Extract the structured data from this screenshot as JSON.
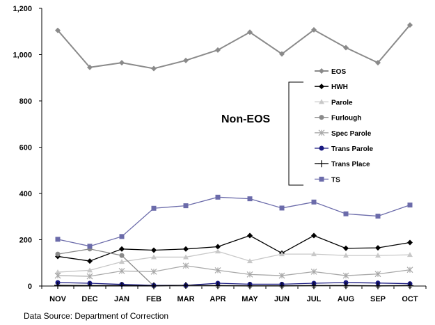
{
  "chart_data": {
    "type": "line",
    "title": "",
    "xlabel": "",
    "ylabel": "",
    "categories": [
      "NOV",
      "DEC",
      "JAN",
      "FEB",
      "MAR",
      "APR",
      "MAY",
      "JUN",
      "JUL",
      "AUG",
      "SEP",
      "OCT"
    ],
    "ylim": [
      0,
      1200
    ],
    "y_ticks": [
      0,
      200,
      400,
      600,
      800,
      1000,
      1200
    ],
    "y_tick_labels": [
      "0",
      "200",
      "400",
      "600",
      "800",
      "1,000",
      "1,200"
    ],
    "grid": false,
    "legend_position": "right",
    "series": [
      {
        "name": "EOS",
        "color": "#8a8a8a",
        "marker": "diamond",
        "values": [
          1105,
          945,
          965,
          940,
          975,
          1020,
          1097,
          1003,
          1107,
          1030,
          965,
          1128
        ]
      },
      {
        "name": "HWH",
        "color": "#000000",
        "marker": "diamond",
        "values": [
          128,
          108,
          160,
          155,
          160,
          170,
          218,
          142,
          218,
          163,
          165,
          188
        ]
      },
      {
        "name": "Parole",
        "color": "#c8c8c8",
        "marker": "triangle",
        "values": [
          60,
          68,
          105,
          125,
          125,
          150,
          108,
          138,
          138,
          132,
          132,
          135
        ]
      },
      {
        "name": "Furlough",
        "color": "#8a8a8a",
        "marker": "circle",
        "values": [
          138,
          160,
          132,
          0,
          0,
          0,
          0,
          0,
          0,
          0,
          0,
          0
        ]
      },
      {
        "name": "Spec Parole",
        "color": "#a8a8a8",
        "marker": "asterisk",
        "values": [
          45,
          42,
          65,
          62,
          88,
          68,
          50,
          45,
          62,
          45,
          52,
          70
        ]
      },
      {
        "name": "Trans Parole",
        "color": "#1a1a80",
        "marker": "circle",
        "values": [
          15,
          12,
          7,
          3,
          3,
          12,
          8,
          8,
          12,
          15,
          13,
          10
        ]
      },
      {
        "name": "Trans Place",
        "color": "#000000",
        "marker": "plus",
        "values": [
          3,
          2,
          2,
          1,
          3,
          2,
          1,
          1,
          2,
          2,
          1,
          2
        ]
      },
      {
        "name": "TS",
        "color": "#6b6baa",
        "marker": "square",
        "values": [
          202,
          172,
          214,
          336,
          347,
          384,
          377,
          337,
          363,
          312,
          302,
          350
        ]
      }
    ],
    "annotation": "Non-EOS",
    "source_note": "Data Source: Department of Correction"
  }
}
